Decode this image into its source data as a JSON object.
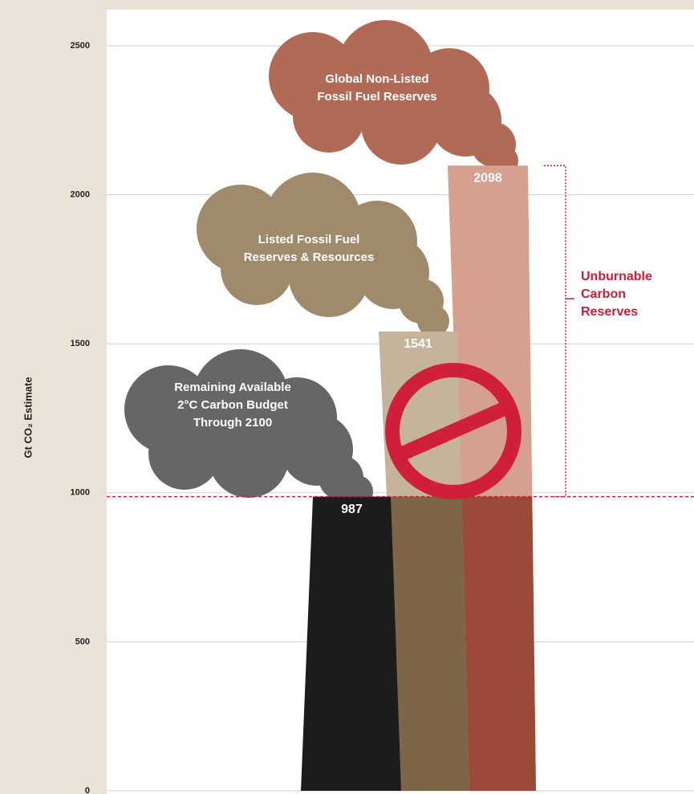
{
  "chart_data": {
    "type": "smokestack",
    "y_axis_label": "Gt CO₂ Estimate",
    "categories": [
      [
        "Remaining Available",
        "2°C Carbon Budget",
        "Through 2100"
      ],
      [
        "Listed Fossil Fuel",
        "Reserves & Resources"
      ],
      [
        "Global Non-Listed",
        "Fossil Fuel Reserves"
      ]
    ],
    "values": [
      987,
      1541,
      2098
    ],
    "colors": [
      "#1c1c1c",
      "#c5b49b",
      "#d6a08f"
    ],
    "base_colors": [
      "#1c1c1c",
      "#7d6548",
      "#9b4a3a"
    ],
    "cloud_colors": [
      "#666666",
      "#a08a6c",
      "#b06a55"
    ],
    "annotation": [
      "Unburnable",
      "Carbon",
      "Reserves"
    ],
    "ylim": [
      0,
      2500
    ],
    "yticks": [
      0,
      500,
      1000,
      1500,
      2000,
      2500
    ],
    "grid": true
  }
}
